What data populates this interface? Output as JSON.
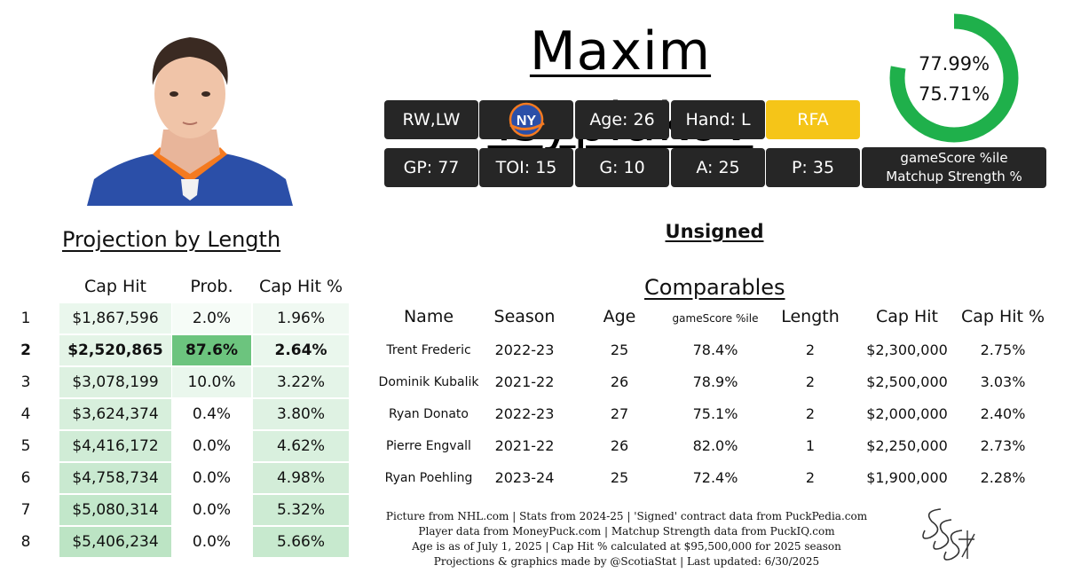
{
  "player": {
    "name": "Maxim Tsyplakov",
    "team_logo": "new-york-islanders-logo",
    "info_chips": [
      "RW,LW",
      "Age: 26",
      "Hand: L",
      "RFA"
    ],
    "stat_chips": [
      "GP: 77",
      "TOI: 15",
      "G: 10",
      "A: 25",
      "P: 35"
    ]
  },
  "ring": {
    "gamescore_pct": "77.99%",
    "matchup_pct": "75.71%",
    "gamescore_value": 77.99,
    "label_line1": "gameScore %ile",
    "label_line2": "Matchup Strength %",
    "color": "#1fb04b"
  },
  "status": "Unsigned",
  "projection": {
    "title": "Projection by Length",
    "headers": [
      "Cap Hit",
      "Prob.",
      "Cap Hit %"
    ],
    "rows": [
      {
        "len": "1",
        "cap": "$1,867,596",
        "prob": "2.0%",
        "pct": "1.96%",
        "prob_value": 2.0
      },
      {
        "len": "2",
        "cap": "$2,520,865",
        "prob": "87.6%",
        "pct": "2.64%",
        "prob_value": 87.6
      },
      {
        "len": "3",
        "cap": "$3,078,199",
        "prob": "10.0%",
        "pct": "3.22%",
        "prob_value": 10.0
      },
      {
        "len": "4",
        "cap": "$3,624,374",
        "prob": "0.4%",
        "pct": "3.80%",
        "prob_value": 0.4
      },
      {
        "len": "5",
        "cap": "$4,416,172",
        "prob": "0.0%",
        "pct": "4.62%",
        "prob_value": 0.0
      },
      {
        "len": "6",
        "cap": "$4,758,734",
        "prob": "0.0%",
        "pct": "4.98%",
        "prob_value": 0.0
      },
      {
        "len": "7",
        "cap": "$5,080,314",
        "prob": "0.0%",
        "pct": "5.32%",
        "prob_value": 0.0
      },
      {
        "len": "8",
        "cap": "$5,406,234",
        "prob": "0.0%",
        "pct": "5.66%",
        "prob_value": 0.0
      }
    ],
    "highlight_color": "#6cc47e"
  },
  "comparables": {
    "title": "Comparables",
    "headers": [
      "Name",
      "Season",
      "Age",
      "gameScore %ile",
      "Length",
      "Cap Hit",
      "Cap Hit %"
    ],
    "rows": [
      {
        "name": "Trent Frederic",
        "season": "2022-23",
        "age": "25",
        "gs": "78.4%",
        "len": "2",
        "cap": "$2,300,000",
        "pct": "2.75%"
      },
      {
        "name": "Dominik Kubalik",
        "season": "2021-22",
        "age": "26",
        "gs": "78.9%",
        "len": "2",
        "cap": "$2,500,000",
        "pct": "3.03%"
      },
      {
        "name": "Ryan Donato",
        "season": "2022-23",
        "age": "27",
        "gs": "75.1%",
        "len": "2",
        "cap": "$2,000,000",
        "pct": "2.40%"
      },
      {
        "name": "Pierre Engvall",
        "season": "2021-22",
        "age": "26",
        "gs": "82.0%",
        "len": "1",
        "cap": "$2,250,000",
        "pct": "2.73%"
      },
      {
        "name": "Ryan Poehling",
        "season": "2023-24",
        "age": "25",
        "gs": "72.4%",
        "len": "2",
        "cap": "$1,900,000",
        "pct": "2.28%"
      }
    ]
  },
  "footer": [
    "Picture from NHL.com   |   Stats from 2024-25   |   'Signed' contract data from PuckPedia.com",
    "Player data from MoneyPuck.com   |   Matchup Strength data from PuckIQ.com",
    "Age is as of July 1, 2025   |   Cap Hit % calculated at $95,500,000 for 2025 season",
    "Projections & graphics made by @ScotiaStat   |   Last updated: 6/30/2025"
  ],
  "signature_text": "SSS"
}
